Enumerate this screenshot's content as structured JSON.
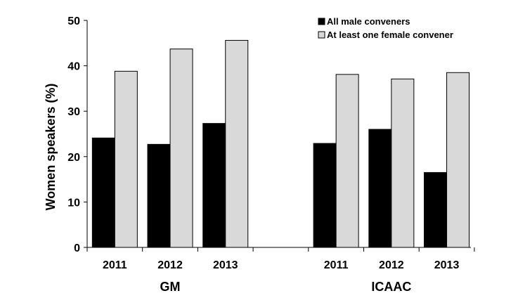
{
  "chart_data": {
    "type": "bar",
    "title": "",
    "xlabel": "",
    "ylabel": "Women speakers (%)",
    "ylim": [
      0,
      50
    ],
    "yticks": [
      "0",
      "10",
      "20",
      "30",
      "40",
      "50"
    ],
    "grid": false,
    "legend_position": "top-right",
    "groups": [
      {
        "name": "GM",
        "categories": [
          "2011",
          "2012",
          "2013"
        ]
      },
      {
        "name": "ICAAC",
        "categories": [
          "2011",
          "2012",
          "2013"
        ]
      }
    ],
    "series": [
      {
        "name": "All male conveners",
        "color": "#000000",
        "values": [
          24.1,
          22.7,
          27.3,
          22.9,
          26.0,
          16.5
        ]
      },
      {
        "name": "At least one female convener",
        "color": "#d9d9d9",
        "values": [
          38.8,
          43.7,
          45.6,
          38.1,
          37.1,
          38.5
        ]
      }
    ]
  }
}
